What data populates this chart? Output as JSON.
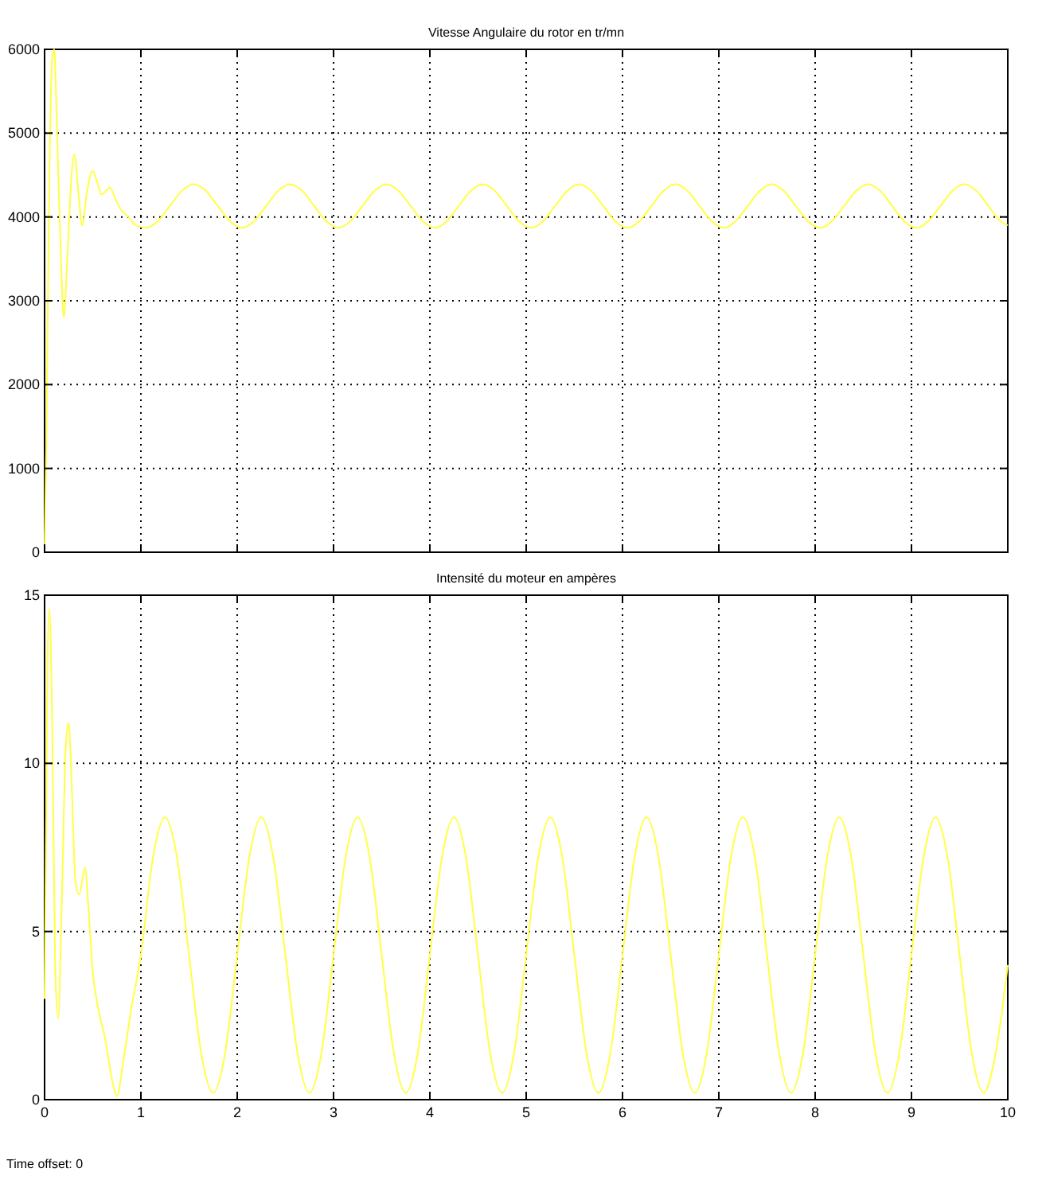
{
  "chart_data": [
    {
      "type": "line",
      "title": "Vitesse Angulaire du rotor en tr/mn",
      "xlim": [
        0,
        10
      ],
      "xticks": [
        0,
        1,
        2,
        3,
        4,
        5,
        6,
        7,
        8,
        9,
        10
      ],
      "ylim": [
        0,
        6000
      ],
      "yticks": [
        0,
        1000,
        2000,
        3000,
        4000,
        5000,
        6000
      ],
      "grid": true,
      "tick_labels": "y",
      "series": [
        {
          "color": "#ffff40",
          "x": [
            0,
            0.02,
            0.05,
            0.08,
            0.1,
            0.13,
            0.17,
            0.2,
            0.24,
            0.28,
            0.31,
            0.35,
            0.39,
            0.44,
            0.5,
            0.55,
            0.59,
            0.63,
            0.68,
            0.74,
            0.8,
            0.87,
            0.95,
            1.05,
            1.175,
            1.3,
            1.425,
            1.55,
            1.675,
            1.8,
            1.925,
            2.05,
            2.175,
            2.3,
            2.425,
            2.55,
            2.675,
            2.8,
            2.925,
            3.05,
            3.175,
            3.3,
            3.425,
            3.55,
            3.675,
            3.8,
            3.925,
            4.05,
            4.175,
            4.3,
            4.425,
            4.55,
            4.675,
            4.8,
            4.925,
            5.05,
            5.175,
            5.3,
            5.425,
            5.55,
            5.675,
            5.8,
            5.925,
            6.05,
            6.175,
            6.3,
            6.425,
            6.55,
            6.675,
            6.8,
            6.925,
            7.05,
            7.175,
            7.3,
            7.425,
            7.55,
            7.675,
            7.8,
            7.925,
            8.05,
            8.175,
            8.3,
            8.425,
            8.55,
            8.675,
            8.8,
            8.925,
            9.05,
            9.175,
            9.3,
            9.425,
            9.55,
            9.675,
            9.8,
            9.925,
            10
          ],
          "values": [
            0,
            1500,
            4500,
            5900,
            6000,
            5000,
            3500,
            2800,
            3600,
            4500,
            4750,
            4300,
            3900,
            4300,
            4550,
            4400,
            4270,
            4300,
            4350,
            4200,
            4080,
            4000,
            3900,
            3870,
            3950,
            4130,
            4310,
            4390,
            4310,
            4130,
            3950,
            3870,
            3950,
            4130,
            4310,
            4390,
            4310,
            4130,
            3950,
            3870,
            3950,
            4130,
            4310,
            4390,
            4310,
            4130,
            3950,
            3870,
            3950,
            4130,
            4310,
            4390,
            4310,
            4130,
            3950,
            3870,
            3950,
            4130,
            4310,
            4390,
            4310,
            4130,
            3950,
            3870,
            3950,
            4130,
            4310,
            4390,
            4310,
            4130,
            3950,
            3870,
            3950,
            4130,
            4310,
            4390,
            4310,
            4130,
            3950,
            3870,
            3950,
            4130,
            4310,
            4390,
            4310,
            4130,
            3950,
            3870,
            3950,
            4130,
            4310,
            4390,
            4310,
            4130,
            3950,
            3900
          ]
        }
      ]
    },
    {
      "type": "line",
      "title": "Intensité du moteur en ampères",
      "xlim": [
        0,
        10
      ],
      "xticks": [
        0,
        1,
        2,
        3,
        4,
        5,
        6,
        7,
        8,
        9,
        10
      ],
      "ylim": [
        0,
        15
      ],
      "yticks": [
        0,
        5,
        10,
        15
      ],
      "grid": true,
      "annotations": [
        "Time offset: 0"
      ],
      "series": [
        {
          "color": "#ffff40",
          "x": [
            0,
            0.03,
            0.05,
            0.08,
            0.11,
            0.14,
            0.18,
            0.22,
            0.25,
            0.28,
            0.32,
            0.36,
            0.42,
            0.46,
            0.5,
            0.55,
            0.63,
            0.7,
            0.75,
            0.82,
            0.9,
            1,
            1.125,
            1.25,
            1.375,
            1.5,
            1.625,
            1.75,
            1.875,
            2,
            2.125,
            2.25,
            2.375,
            2.5,
            2.625,
            2.75,
            2.875,
            3,
            3.125,
            3.25,
            3.375,
            3.5,
            3.625,
            3.75,
            3.875,
            4,
            4.125,
            4.25,
            4.375,
            4.5,
            4.625,
            4.75,
            4.875,
            5,
            5.125,
            5.25,
            5.375,
            5.5,
            5.625,
            5.75,
            5.875,
            6,
            6.125,
            6.25,
            6.375,
            6.5,
            6.625,
            6.75,
            6.875,
            7,
            7.125,
            7.25,
            7.375,
            7.5,
            7.625,
            7.75,
            7.875,
            8,
            8.125,
            8.25,
            8.375,
            8.5,
            8.625,
            8.75,
            8.875,
            9,
            9.125,
            9.25,
            9.375,
            9.5,
            9.625,
            9.75,
            9.875,
            10
          ],
          "values": [
            3,
            13,
            14.6,
            11,
            4,
            2.4,
            6,
            10.5,
            11.2,
            9.5,
            6.5,
            6.1,
            6.9,
            5.5,
            3.8,
            2.8,
            1.8,
            0.6,
            0.1,
            1.2,
            2.7,
            4.3,
            7.2,
            8.4,
            7.2,
            4.3,
            1.4,
            0.2,
            1.4,
            4.3,
            7.2,
            8.4,
            7.2,
            4.3,
            1.4,
            0.2,
            1.4,
            4.3,
            7.2,
            8.4,
            7.2,
            4.3,
            1.4,
            0.2,
            1.4,
            4.3,
            7.2,
            8.4,
            7.2,
            4.3,
            1.4,
            0.2,
            1.4,
            4.3,
            7.2,
            8.4,
            7.2,
            4.3,
            1.4,
            0.2,
            1.4,
            4.3,
            7.2,
            8.4,
            7.2,
            4.3,
            1.4,
            0.2,
            1.4,
            4.3,
            7.2,
            8.4,
            7.2,
            4.3,
            1.4,
            0.2,
            1.4,
            4.3,
            7.2,
            8.4,
            7.2,
            4.3,
            1.4,
            0.2,
            1.4,
            4.3,
            7.2,
            8.4,
            7.2,
            4.3,
            1.4,
            0.2,
            1.4,
            4.0
          ]
        }
      ]
    }
  ]
}
